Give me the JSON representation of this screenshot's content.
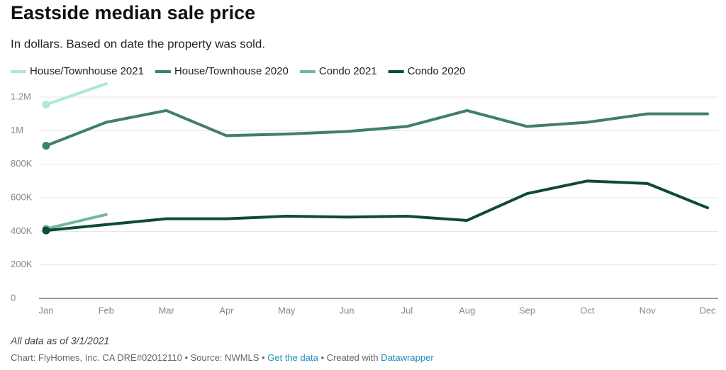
{
  "chart_data": {
    "type": "line",
    "title": "Eastside median sale price",
    "subtitle": "In dollars. Based on date the property was sold.",
    "categories": [
      "Jan",
      "Feb",
      "Mar",
      "Apr",
      "May",
      "Jun",
      "Jul",
      "Aug",
      "Sep",
      "Oct",
      "Nov",
      "Dec"
    ],
    "series": [
      {
        "name": "House/Townhouse 2021",
        "color": "#ade8d3",
        "values": [
          1155000,
          1280000,
          null,
          null,
          null,
          null,
          null,
          null,
          null,
          null,
          null,
          null
        ]
      },
      {
        "name": "House/Townhouse 2020",
        "color": "#3f7f6b",
        "values": [
          910000,
          1050000,
          1120000,
          970000,
          980000,
          995000,
          1025000,
          1120000,
          1025000,
          1050000,
          1100000,
          1100000
        ]
      },
      {
        "name": "Condo 2021",
        "color": "#72b89d",
        "values": [
          415000,
          500000,
          null,
          null,
          null,
          null,
          null,
          null,
          null,
          null,
          null,
          null
        ]
      },
      {
        "name": "Condo 2020",
        "color": "#0d4a39",
        "values": [
          405000,
          440000,
          475000,
          475000,
          490000,
          485000,
          490000,
          465000,
          625000,
          700000,
          685000,
          540000
        ]
      }
    ],
    "ylim": [
      0,
      1200000
    ],
    "yticks": [
      0,
      {
        "value": 200000,
        "label": "200K"
      },
      {
        "value": 400000,
        "label": "400K"
      },
      {
        "value": 600000,
        "label": "600K"
      },
      {
        "value": 800000,
        "label": "800K"
      },
      {
        "value": 1000000,
        "label": "1M"
      },
      {
        "value": 1200000,
        "label": "1.2M"
      }
    ],
    "grid": true,
    "legend": "top",
    "notes": "All data as of 3/1/2021",
    "footer": {
      "credit": "Chart: FlyHomes, Inc. CA DRE#02012110",
      "separator": "•",
      "source": "Source: NWMLS",
      "get_data": "Get the data",
      "created_with": "Created with",
      "tool": "Datawrapper"
    }
  }
}
